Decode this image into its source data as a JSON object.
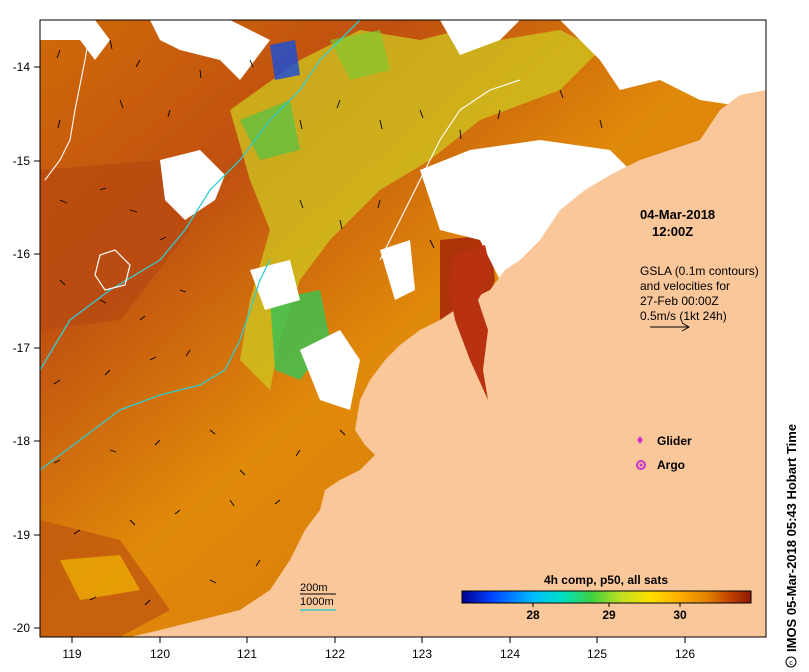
{
  "map": {
    "date": "04-Mar-2018",
    "time": "12:00Z",
    "gsla_lines": [
      "GSLA (0.1m contours)",
      "and velocities for",
      "27-Feb 00:00Z",
      "0.5m/s (1kt 24h)"
    ],
    "x_ticks": [
      "119",
      "120",
      "121",
      "122",
      "123",
      "124",
      "125",
      "126"
    ],
    "y_ticks": [
      "-14",
      "-15",
      "-16",
      "-17",
      "-18",
      "-19",
      "-20"
    ],
    "legend_points": [
      {
        "label": "Glider",
        "color": "#cc33cc",
        "icon": "diamond"
      },
      {
        "label": "Argo",
        "color": "#cc33cc",
        "icon": "argo-float"
      }
    ],
    "depth_lines": [
      {
        "label": "200m",
        "color": "#000000"
      },
      {
        "label": "1000m",
        "color": "#33cccc"
      }
    ],
    "colorbar": {
      "title": "4h comp, p50, all sats",
      "ticks": [
        "28",
        "29",
        "30"
      ],
      "colors": [
        "#00008b",
        "#0040ff",
        "#00c0ff",
        "#00e0c0",
        "#40d040",
        "#c0e020",
        "#ffe000",
        "#ffb000",
        "#e08000",
        "#c04000",
        "#8b1a00"
      ]
    },
    "credit": "IMOS 05-Mar-2018 05:43 Hobart Time",
    "land_color": "#f9c79a"
  }
}
